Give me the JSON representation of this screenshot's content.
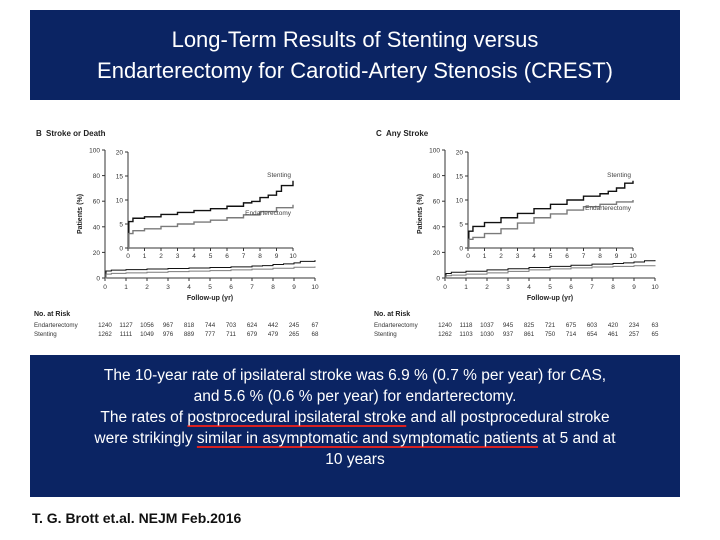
{
  "title": {
    "line1": "Long-Term Results of Stenting versus",
    "line2": "Endarterectomy for Carotid-Artery Stenosis (CREST)"
  },
  "chart_data": [
    {
      "type": "line",
      "panel": "B",
      "title": "Stroke or Death",
      "ylabel": "Patients (%)",
      "xlabel": "Follow-up (yr)",
      "ylim": [
        0,
        100
      ],
      "xlim": [
        0,
        10
      ],
      "y_ticks": [
        "0",
        "20",
        "40",
        "60",
        "80",
        "100"
      ],
      "x_ticks": [
        "0",
        "1",
        "2",
        "3",
        "4",
        "5",
        "6",
        "7",
        "8",
        "9",
        "10"
      ],
      "inset": {
        "ylim": [
          0,
          20
        ],
        "y_ticks": [
          "0",
          "5",
          "10",
          "15",
          "20"
        ],
        "x_ticks": [
          "0",
          "1",
          "2",
          "3",
          "4",
          "5",
          "6",
          "7",
          "8",
          "9",
          "10"
        ]
      },
      "series": [
        {
          "name": "Stenting",
          "color": "#111111",
          "x": [
            0,
            0.05,
            0.3,
            1,
            2,
            3,
            4,
            5,
            6,
            7,
            7.5,
            8,
            8.5,
            9,
            9.3,
            10
          ],
          "y": [
            0,
            5.5,
            6.2,
            6.5,
            7.0,
            7.4,
            7.8,
            8.2,
            8.7,
            9.4,
            9.7,
            10.5,
            11.0,
            11.8,
            13.0,
            14.0
          ]
        },
        {
          "name": "Endarterectomy",
          "color": "#7a7a7a",
          "x": [
            0,
            0.05,
            0.3,
            1,
            2,
            3,
            4,
            5,
            6,
            7,
            8,
            9,
            10
          ],
          "y": [
            0,
            3.0,
            3.6,
            4.0,
            4.5,
            5.0,
            5.4,
            5.8,
            6.3,
            6.9,
            7.6,
            8.4,
            9.0
          ]
        }
      ],
      "risk_table": {
        "label": "No. at Risk",
        "rows": [
          {
            "name": "Endarterectomy",
            "values": [
              "1240",
              "1127",
              "1056",
              "967",
              "818",
              "744",
              "703",
              "624",
              "442",
              "245",
              "67"
            ]
          },
          {
            "name": "Stenting",
            "values": [
              "1262",
              "1111",
              "1049",
              "976",
              "889",
              "777",
              "711",
              "679",
              "479",
              "265",
              "68"
            ]
          }
        ]
      }
    },
    {
      "type": "line",
      "panel": "C",
      "title": "Any Stroke",
      "ylabel": "Patients (%)",
      "xlabel": "Follow-up (yr)",
      "ylim": [
        0,
        100
      ],
      "xlim": [
        0,
        10
      ],
      "y_ticks": [
        "0",
        "20",
        "40",
        "60",
        "80",
        "100"
      ],
      "x_ticks": [
        "0",
        "1",
        "2",
        "3",
        "4",
        "5",
        "6",
        "7",
        "8",
        "9",
        "10"
      ],
      "inset": {
        "ylim": [
          0,
          20
        ],
        "y_ticks": [
          "0",
          "5",
          "10",
          "15",
          "20"
        ],
        "x_ticks": [
          "0",
          "1",
          "2",
          "3",
          "4",
          "5",
          "6",
          "7",
          "8",
          "9",
          "10"
        ]
      },
      "series": [
        {
          "name": "Stenting",
          "color": "#111111",
          "x": [
            0,
            0.05,
            0.3,
            1,
            2,
            3,
            4,
            5,
            6,
            7,
            8,
            8.5,
            9,
            9.5,
            10
          ],
          "y": [
            0,
            3.5,
            4.5,
            5.3,
            6.3,
            7.2,
            8.2,
            9.1,
            10.0,
            10.8,
            11.3,
            11.8,
            12.5,
            13.5,
            14.0
          ]
        },
        {
          "name": "Endarterectomy",
          "color": "#7a7a7a",
          "x": [
            0,
            0.05,
            0.3,
            1,
            2,
            3,
            4,
            5,
            6,
            7,
            8,
            9,
            10
          ],
          "y": [
            0,
            1.8,
            2.2,
            3.0,
            4.0,
            5.2,
            6.3,
            7.1,
            7.9,
            8.6,
            9.1,
            9.6,
            10.0
          ]
        }
      ],
      "risk_table": {
        "label": "No. at Risk",
        "rows": [
          {
            "name": "Endarterectomy",
            "values": [
              "1240",
              "1118",
              "1037",
              "945",
              "825",
              "721",
              "675",
              "603",
              "420",
              "234",
              "63"
            ]
          },
          {
            "name": "Stenting",
            "values": [
              "1262",
              "1103",
              "1030",
              "937",
              "861",
              "750",
              "714",
              "654",
              "461",
              "257",
              "65"
            ]
          }
        ]
      }
    }
  ],
  "summary": {
    "line1": "The 10-year rate of ipsilateral stroke was 6.9 % (0.7 % per year) for CAS,",
    "line2": "and 5.6 % (0.6 % per year) for endarterectomy.",
    "line3_pre": "The rates of ",
    "line3_ul": "postprocedural ipsilateral stroke",
    "line3_post": " and all postprocedural stroke",
    "line4_pre": "were strikingly ",
    "line4_ul": "similar in asymptomatic and symptomatic patients",
    "line4_post": " at 5  and at",
    "line5": "10 years"
  },
  "citation": "T. G. Brott et.al. NEJM Feb.2016"
}
